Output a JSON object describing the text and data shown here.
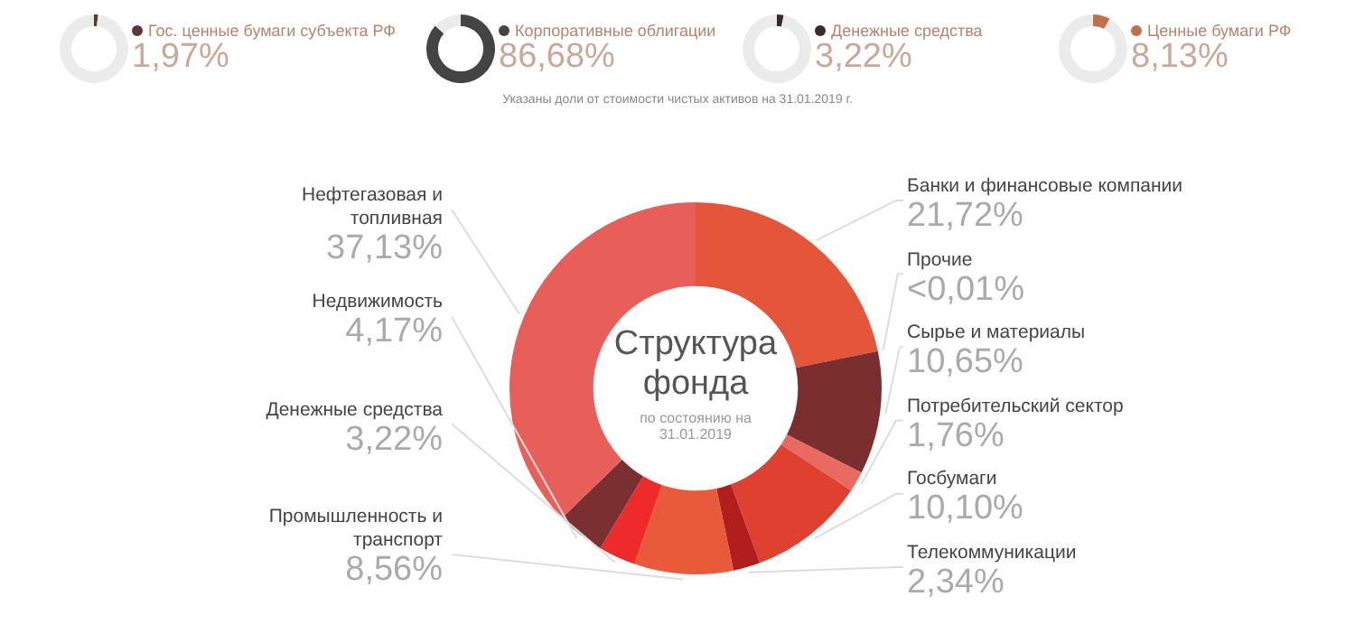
{
  "chart_data": [
    {
      "type": "donut",
      "categories": [
        "Гос. ценные бумаги субъекта РФ",
        null
      ],
      "values": [
        1.97,
        98.03
      ],
      "colors": [
        "#5a3a34",
        "#ebebeb"
      ],
      "value_labels": [
        "1,97%",
        null
      ]
    },
    {
      "type": "donut",
      "categories": [
        "Корпоративные облигации",
        null
      ],
      "values": [
        86.68,
        13.32
      ],
      "colors": [
        "#444444",
        "#ebebeb"
      ],
      "value_labels": [
        "86,68%",
        null
      ]
    },
    {
      "type": "donut",
      "categories": [
        "Денежные средства",
        null
      ],
      "values": [
        3.22,
        96.78
      ],
      "colors": [
        "#3a2a28",
        "#ebebeb"
      ],
      "value_labels": [
        "3,22%",
        null
      ]
    },
    {
      "type": "donut",
      "categories": [
        "Ценные бумаги РФ",
        null
      ],
      "values": [
        8.13,
        91.87
      ],
      "colors": [
        "#c0704a",
        "#ebebeb"
      ],
      "value_labels": [
        "8,13%",
        null
      ]
    },
    {
      "type": "donut",
      "title": "Структура фонда",
      "subtitle": "по состоянию на 31.01.2019",
      "annotations": [
        "Указаны доли от стоимости чистых активов на 31.01.2019 г."
      ],
      "categories": [
        "Банки и финансовые компании",
        "Прочие",
        "Сырье и материалы",
        "Потребительский сектор",
        "Госбумаги",
        "Телекоммуникации",
        "Промышленность и транспорт",
        "Денежные средства",
        "Недвижимость",
        "Нефтегазовая и топливная"
      ],
      "values": [
        21.72,
        null,
        10.65,
        1.76,
        10.1,
        2.34,
        8.56,
        3.22,
        4.17,
        37.13
      ],
      "colors": [
        "#e4553a",
        "#d0503a",
        "#7a2e2e",
        "#e86a60",
        "#e0402f",
        "#b01e1e",
        "#e85a3a",
        "#ee2a2a",
        "#7a3030",
        "#e85f5a"
      ],
      "value_labels": [
        "21,72%",
        "<0,01%",
        "10,65%",
        "1,76%",
        "10,10%",
        "2,34%",
        "8,56%",
        "3,22%",
        "4,17%",
        "37,13%"
      ]
    }
  ]
}
